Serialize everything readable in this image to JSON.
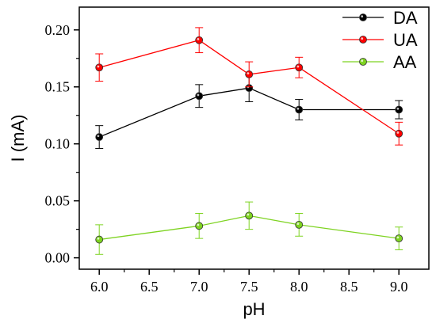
{
  "chart_data": {
    "type": "line",
    "xlabel": "pH",
    "ylabel": "I (mA)",
    "xlim": [
      5.8,
      9.3
    ],
    "ylim": [
      -0.01,
      0.22
    ],
    "xticks": [
      6.0,
      6.5,
      7.0,
      7.5,
      8.0,
      8.5,
      9.0
    ],
    "xtick_labels": [
      "6.0",
      "6.5",
      "7.0",
      "7.5",
      "8.0",
      "8.5",
      "9.0"
    ],
    "yticks": [
      0.0,
      0.05,
      0.1,
      0.15,
      0.2
    ],
    "ytick_labels": [
      "0.00",
      "0.05",
      "0.10",
      "0.15",
      "0.20"
    ],
    "x": [
      6.0,
      7.0,
      7.5,
      8.0,
      9.0
    ],
    "legend_position": "top-right",
    "grid": false,
    "series": [
      {
        "name": "DA",
        "color": "#000000",
        "values": [
          0.106,
          0.142,
          0.149,
          0.13,
          0.13
        ],
        "errors": [
          0.01,
          0.01,
          0.012,
          0.009,
          0.008
        ]
      },
      {
        "name": "UA",
        "color": "#ff0000",
        "values": [
          0.167,
          0.191,
          0.161,
          0.167,
          0.109
        ],
        "errors": [
          0.012,
          0.011,
          0.011,
          0.009,
          0.01
        ]
      },
      {
        "name": "AA",
        "color": "#7ed321",
        "values": [
          0.016,
          0.028,
          0.037,
          0.029,
          0.017
        ],
        "errors": [
          0.013,
          0.011,
          0.012,
          0.01,
          0.01
        ]
      }
    ]
  }
}
